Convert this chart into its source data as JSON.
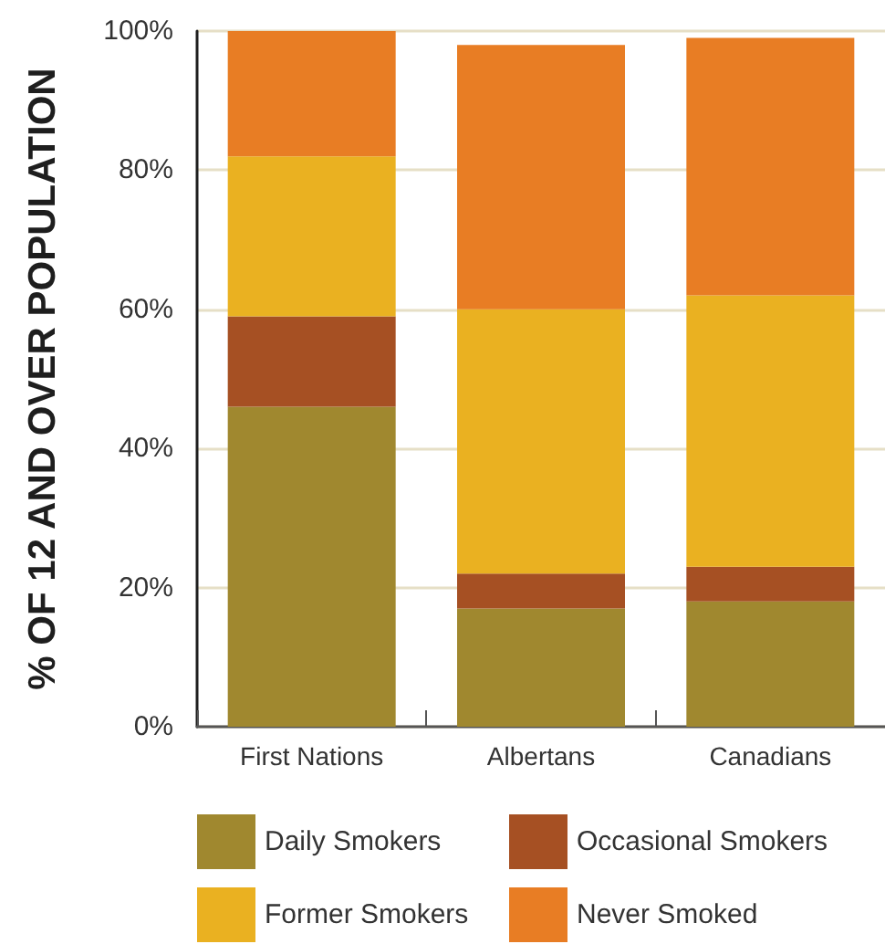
{
  "chart_data": {
    "type": "bar",
    "stacked": true,
    "ylabel": "% OF 12 AND OVER POPULATION",
    "categories": [
      "First Nations",
      "Albertans",
      "Canadians"
    ],
    "series": [
      {
        "name": "Daily Smokers",
        "color": "#a0882f",
        "values": [
          46,
          17,
          18
        ]
      },
      {
        "name": "Occasional Smokers",
        "color": "#a65023",
        "values": [
          13,
          5,
          5
        ]
      },
      {
        "name": "Former Smokers",
        "color": "#eab121",
        "values": [
          23,
          38,
          39
        ]
      },
      {
        "name": "Never Smoked",
        "color": "#e87d24",
        "values": [
          18,
          38,
          37
        ]
      }
    ],
    "ylim": [
      0,
      100
    ],
    "yticks": [
      {
        "value": 0,
        "label": "0%"
      },
      {
        "value": 20,
        "label": "20%"
      },
      {
        "value": 40,
        "label": "40%"
      },
      {
        "value": 60,
        "label": "60%"
      },
      {
        "value": 80,
        "label": "80%"
      },
      {
        "value": 100,
        "label": "100%"
      }
    ],
    "grid": "y",
    "legend": "bottom"
  }
}
